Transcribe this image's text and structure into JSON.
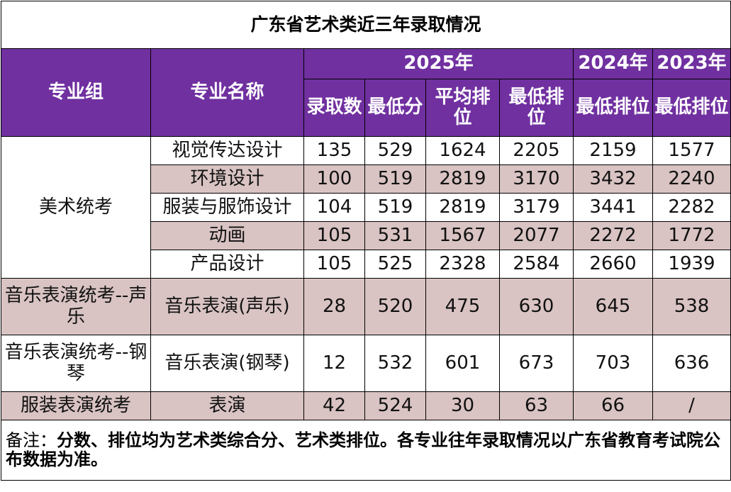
{
  "title": "广东省艺术类近三年录取情况",
  "colors": {
    "header_bg": "#7030a0",
    "header_text": "#ffffff",
    "stripe": "#d9c3c3"
  },
  "headers": {
    "group": "专业组",
    "major": "专业名称",
    "year_2025": "2025年",
    "year_2024": "2024年",
    "year_2023": "2023年",
    "admitted_count": "录取数",
    "min_score": "最低分",
    "avg_rank": "平均排位",
    "min_rank_2025": "最低排位",
    "min_rank_2024": "最低排位",
    "min_rank_2023": "最低排位"
  },
  "groups": {
    "art": "美术统考",
    "vocal": "音乐表演统考--声乐",
    "piano": "音乐表演统考--钢琴",
    "fashion": "服装表演统考"
  },
  "rows": [
    {
      "major": "视觉传达设计",
      "count": "135",
      "min_score": "529",
      "avg_rank": "1624",
      "min_rank": "2205",
      "min_rank_2024": "2159",
      "min_rank_2023": "1577"
    },
    {
      "major": "环境设计",
      "count": "100",
      "min_score": "519",
      "avg_rank": "2819",
      "min_rank": "3170",
      "min_rank_2024": "3432",
      "min_rank_2023": "2240"
    },
    {
      "major": "服装与服饰设计",
      "count": "104",
      "min_score": "519",
      "avg_rank": "2819",
      "min_rank": "3179",
      "min_rank_2024": "3441",
      "min_rank_2023": "2282"
    },
    {
      "major": "动画",
      "count": "105",
      "min_score": "531",
      "avg_rank": "1567",
      "min_rank": "2077",
      "min_rank_2024": "2272",
      "min_rank_2023": "1772"
    },
    {
      "major": "产品设计",
      "count": "105",
      "min_score": "525",
      "avg_rank": "2328",
      "min_rank": "2584",
      "min_rank_2024": "2660",
      "min_rank_2023": "1939"
    },
    {
      "major": "音乐表演(声乐)",
      "count": "28",
      "min_score": "520",
      "avg_rank": "475",
      "min_rank": "630",
      "min_rank_2024": "645",
      "min_rank_2023": "538"
    },
    {
      "major": "音乐表演(钢琴)",
      "count": "12",
      "min_score": "532",
      "avg_rank": "601",
      "min_rank": "673",
      "min_rank_2024": "703",
      "min_rank_2023": "636"
    },
    {
      "major": "表演",
      "count": "42",
      "min_score": "524",
      "avg_rank": "30",
      "min_rank": "63",
      "min_rank_2024": "66",
      "min_rank_2023": "/"
    }
  ],
  "note": {
    "label": "备注：",
    "text": "分数、排位均为艺术类综合分、艺术类排位。各专业往年录取情况以广东省教育考试院公布数据为准。"
  }
}
